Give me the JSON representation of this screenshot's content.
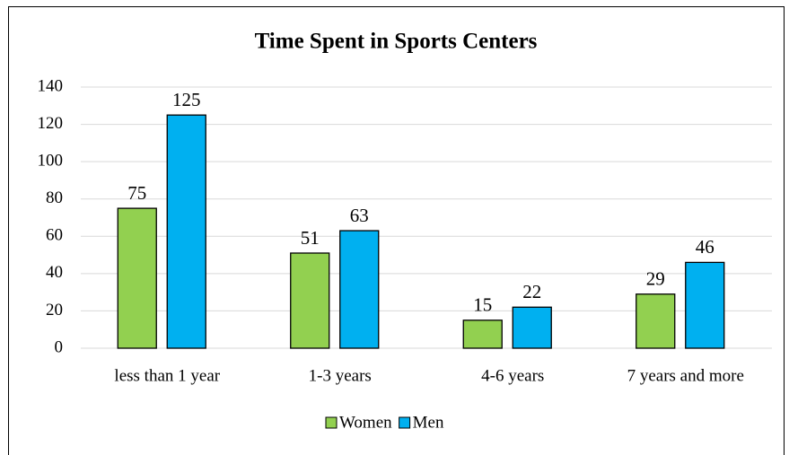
{
  "chart_data": {
    "type": "bar",
    "title": "Time Spent in Sports Centers",
    "categories": [
      "less than 1 year",
      "1-3 years",
      "4-6 years",
      "7 years and more"
    ],
    "series": [
      {
        "name": "Women",
        "color": "#92d050",
        "values": [
          75,
          51,
          15,
          29
        ]
      },
      {
        "name": "Men",
        "color": "#00b0f0",
        "values": [
          125,
          63,
          22,
          46
        ]
      }
    ],
    "ylim": [
      0,
      140
    ],
    "yticks": [
      0,
      20,
      40,
      60,
      80,
      100,
      120,
      140
    ],
    "grid": true,
    "legend": "bottom"
  }
}
